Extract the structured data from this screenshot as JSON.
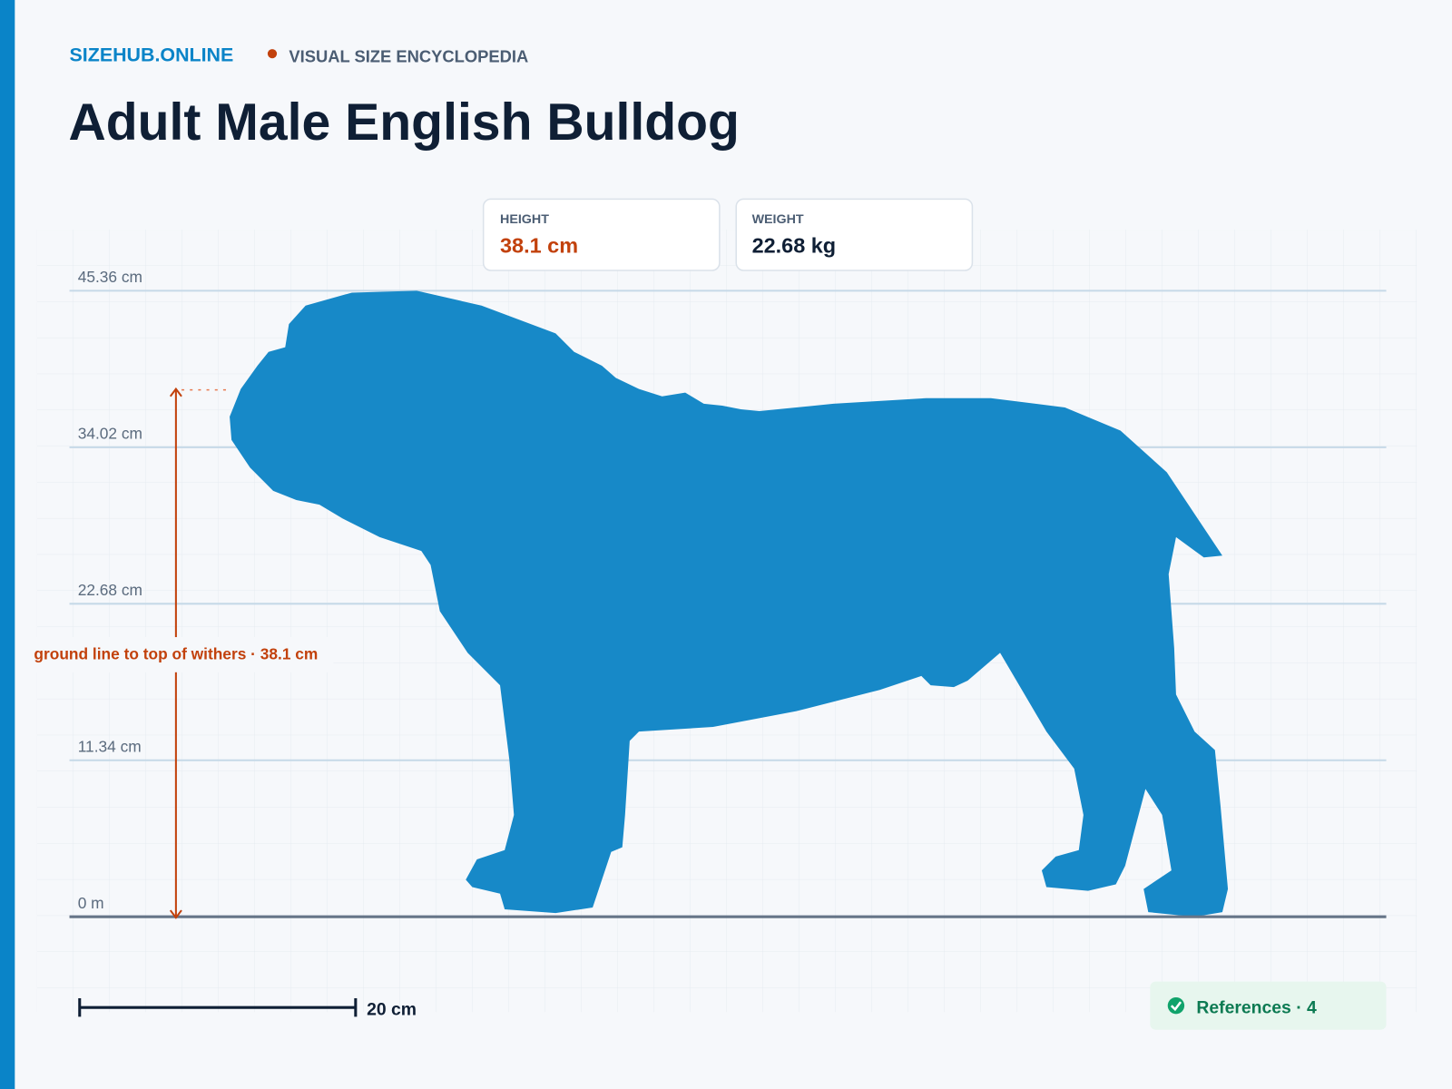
{
  "header": {
    "brand": "SIZEHUB.ONLINE",
    "tagline": "VISUAL SIZE ENCYCLOPEDIA",
    "title": "Adult Male English Bulldog"
  },
  "stats": [
    {
      "label": "HEIGHT",
      "value": "38.1 cm"
    },
    {
      "label": "WEIGHT",
      "value": "22.68 kg"
    }
  ],
  "scale_lines": [
    "45.36 cm",
    "34.02 cm",
    "22.68 cm",
    "11.34 cm",
    "0 m"
  ],
  "annotation": "ground line to top of withers · 38.1 cm",
  "scale_bar": "20 cm",
  "references": "References · 4"
}
